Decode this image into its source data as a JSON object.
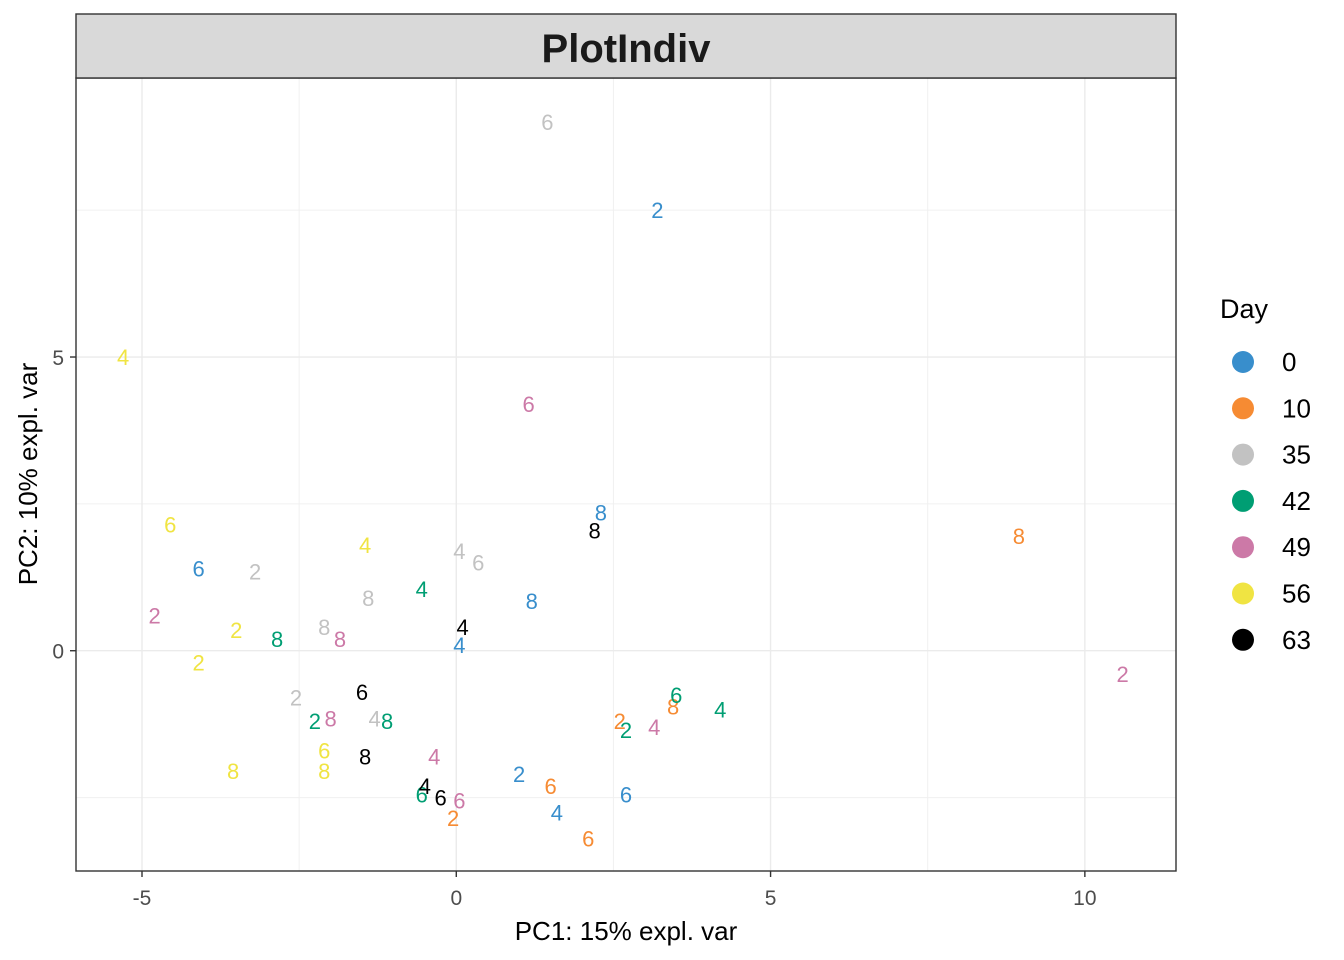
{
  "chart_data": {
    "type": "scatter",
    "title": "PlotIndiv",
    "xlabel": "PC1: 15% expl. var",
    "ylabel": "PC2: 10% expl. var",
    "xlim": [
      -6.05,
      11.45
    ],
    "ylim": [
      -3.75,
      9.75
    ],
    "x_ticks": [
      -5,
      0,
      5,
      10
    ],
    "x_tick_labels": [
      "-5",
      "0",
      "5",
      "10"
    ],
    "y_ticks": [
      0,
      5
    ],
    "y_tick_labels": [
      "0",
      "5"
    ],
    "x_minor_ticks": [
      -2.5,
      2.5,
      7.5
    ],
    "y_minor_ticks": [
      -2.5,
      2.5,
      7.5
    ],
    "grid": true,
    "legend": {
      "title": "Day",
      "position": "right",
      "items": [
        {
          "label": "0",
          "color": "#388ECC"
        },
        {
          "label": "10",
          "color": "#F68B33"
        },
        {
          "label": "35",
          "color": "#C2C2C2"
        },
        {
          "label": "42",
          "color": "#009E73"
        },
        {
          "label": "49",
          "color": "#CC79A7"
        },
        {
          "label": "56",
          "color": "#F0E442"
        },
        {
          "label": "63",
          "color": "#000000"
        }
      ]
    },
    "series": [
      {
        "name": "0",
        "color": "#388ECC",
        "points": [
          {
            "x": 3.2,
            "y": 7.5,
            "label": "2"
          },
          {
            "x": 2.3,
            "y": 2.35,
            "label": "8"
          },
          {
            "x": -4.1,
            "y": 1.4,
            "label": "6"
          },
          {
            "x": 1.2,
            "y": 0.85,
            "label": "8"
          },
          {
            "x": 0.05,
            "y": 0.1,
            "label": "4"
          },
          {
            "x": 1.0,
            "y": -2.1,
            "label": "2"
          },
          {
            "x": 2.7,
            "y": -2.45,
            "label": "6"
          },
          {
            "x": 1.6,
            "y": -2.75,
            "label": "4"
          }
        ]
      },
      {
        "name": "10",
        "color": "#F68B33",
        "points": [
          {
            "x": 8.95,
            "y": 1.95,
            "label": "8"
          },
          {
            "x": 3.45,
            "y": -0.95,
            "label": "8"
          },
          {
            "x": 2.6,
            "y": -1.2,
            "label": "2"
          },
          {
            "x": 1.5,
            "y": -2.3,
            "label": "6"
          },
          {
            "x": -0.05,
            "y": -2.85,
            "label": "2"
          },
          {
            "x": 2.1,
            "y": -3.2,
            "label": "6"
          }
        ]
      },
      {
        "name": "35",
        "color": "#C2C2C2",
        "points": [
          {
            "x": 1.45,
            "y": 9.0,
            "label": "6"
          },
          {
            "x": 0.05,
            "y": 1.7,
            "label": "4"
          },
          {
            "x": 0.35,
            "y": 1.5,
            "label": "6"
          },
          {
            "x": -3.2,
            "y": 1.35,
            "label": "2"
          },
          {
            "x": -1.4,
            "y": 0.9,
            "label": "8"
          },
          {
            "x": -2.1,
            "y": 0.4,
            "label": "8"
          },
          {
            "x": -2.55,
            "y": -0.8,
            "label": "2"
          },
          {
            "x": -1.3,
            "y": -1.15,
            "label": "4"
          }
        ]
      },
      {
        "name": "42",
        "color": "#009E73",
        "points": [
          {
            "x": -0.55,
            "y": 1.05,
            "label": "4"
          },
          {
            "x": -2.85,
            "y": 0.2,
            "label": "8"
          },
          {
            "x": 3.5,
            "y": -0.75,
            "label": "6"
          },
          {
            "x": 4.2,
            "y": -1.0,
            "label": "4"
          },
          {
            "x": -2.25,
            "y": -1.2,
            "label": "2"
          },
          {
            "x": -1.1,
            "y": -1.2,
            "label": "8"
          },
          {
            "x": 2.7,
            "y": -1.35,
            "label": "2"
          },
          {
            "x": -0.55,
            "y": -2.45,
            "label": "6"
          }
        ]
      },
      {
        "name": "49",
        "color": "#CC79A7",
        "points": [
          {
            "x": 1.15,
            "y": 4.2,
            "label": "6"
          },
          {
            "x": -4.8,
            "y": 0.6,
            "label": "2"
          },
          {
            "x": -1.85,
            "y": 0.2,
            "label": "8"
          },
          {
            "x": 10.6,
            "y": -0.4,
            "label": "2"
          },
          {
            "x": -2.0,
            "y": -1.15,
            "label": "8"
          },
          {
            "x": 3.15,
            "y": -1.3,
            "label": "4"
          },
          {
            "x": -0.35,
            "y": -1.8,
            "label": "4"
          },
          {
            "x": 0.05,
            "y": -2.55,
            "label": "6"
          }
        ]
      },
      {
        "name": "56",
        "color": "#F0E442",
        "points": [
          {
            "x": -5.3,
            "y": 5.0,
            "label": "4"
          },
          {
            "x": -4.55,
            "y": 2.15,
            "label": "6"
          },
          {
            "x": -1.45,
            "y": 1.8,
            "label": "4"
          },
          {
            "x": -3.5,
            "y": 0.35,
            "label": "2"
          },
          {
            "x": -4.1,
            "y": -0.2,
            "label": "2"
          },
          {
            "x": -2.1,
            "y": -1.7,
            "label": "6"
          },
          {
            "x": -3.55,
            "y": -2.05,
            "label": "8"
          },
          {
            "x": -2.1,
            "y": -2.05,
            "label": "8"
          }
        ]
      },
      {
        "name": "63",
        "color": "#000000",
        "points": [
          {
            "x": 2.2,
            "y": 2.05,
            "label": "8"
          },
          {
            "x": 0.1,
            "y": 0.4,
            "label": "4"
          },
          {
            "x": -1.5,
            "y": -0.7,
            "label": "6"
          },
          {
            "x": -1.45,
            "y": -1.8,
            "label": "8"
          },
          {
            "x": -0.5,
            "y": -2.3,
            "label": "4"
          },
          {
            "x": -0.25,
            "y": -2.5,
            "label": "6"
          }
        ]
      }
    ]
  }
}
